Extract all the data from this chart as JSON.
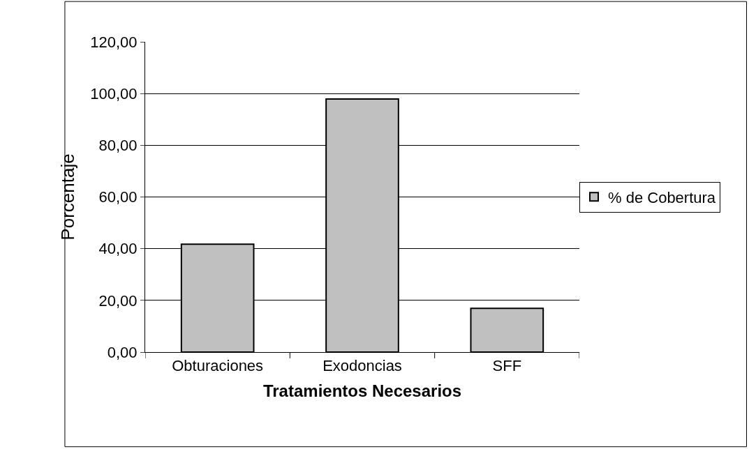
{
  "chart_data": {
    "type": "bar",
    "xlabel": "Tratamientos Necesarios",
    "ylabel": "Porcentaje",
    "categories": [
      "Obturaciones",
      "Exodoncias",
      "SFF"
    ],
    "series": [
      {
        "name": "% de Cobertura",
        "color": "#c0c0c0",
        "values": [
          41.7,
          97.9,
          16.9
        ]
      }
    ],
    "ylim": [
      0,
      120
    ],
    "yticks": [
      {
        "value": 0,
        "label": "0,00"
      },
      {
        "value": 20,
        "label": "20,00"
      },
      {
        "value": 40,
        "label": "40,00"
      },
      {
        "value": 60,
        "label": "60,00"
      },
      {
        "value": 80,
        "label": "80,00"
      },
      {
        "value": 100,
        "label": "100,00"
      },
      {
        "value": 120,
        "label": "120,00"
      }
    ],
    "grid": "y",
    "legend": "right"
  }
}
